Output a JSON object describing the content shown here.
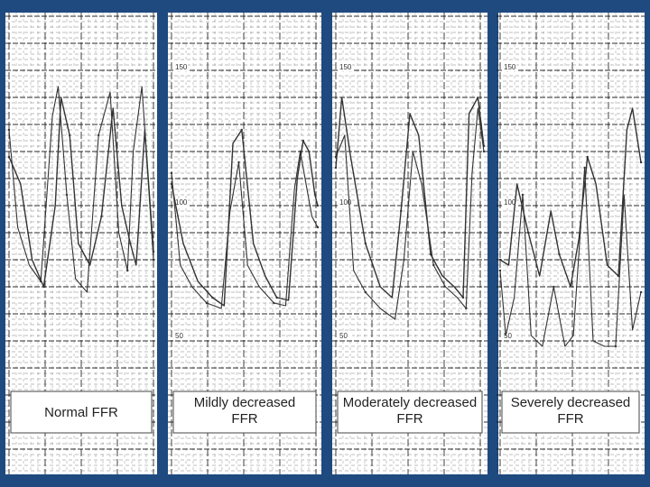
{
  "colors": {
    "background": "#1f4a80",
    "paper": "#ffffff",
    "grid": "#111111",
    "trace": "#333333"
  },
  "chart_data": [
    {
      "type": "line",
      "label": "Normal FFR",
      "tick_labels": [],
      "series": [
        {
          "x": [
            0,
            0.08,
            0.16,
            0.24,
            0.32,
            0.36,
            0.42,
            0.48,
            0.56,
            0.64,
            0.72,
            0.78,
            0.84,
            0.88,
            0.94,
            1
          ],
          "y": [
            110,
            100,
            72,
            62,
            92,
            132,
            118,
            78,
            70,
            88,
            128,
            92,
            78,
            70,
            120,
            75
          ]
        },
        {
          "x": [
            0,
            0.06,
            0.14,
            0.22,
            0.3,
            0.34,
            0.4,
            0.46,
            0.54,
            0.62,
            0.7,
            0.76,
            0.82,
            0.86,
            0.92,
            1
          ],
          "y": [
            120,
            84,
            70,
            64,
            125,
            136,
            96,
            65,
            60,
            118,
            134,
            82,
            68,
            112,
            136,
            72
          ]
        }
      ]
    },
    {
      "type": "line",
      "label": "Mildly decreased FFR",
      "tick_labels": [
        "150",
        "100",
        "50"
      ],
      "series": [
        {
          "x": [
            0,
            0.08,
            0.18,
            0.28,
            0.36,
            0.42,
            0.48,
            0.56,
            0.64,
            0.72,
            0.8,
            0.86,
            0.9,
            0.94,
            0.98,
            1
          ],
          "y": [
            100,
            78,
            64,
            58,
            55,
            115,
            120,
            78,
            66,
            58,
            57,
            102,
            116,
            112,
            96,
            92
          ]
        },
        {
          "x": [
            0,
            0.06,
            0.14,
            0.24,
            0.34,
            0.4,
            0.46,
            0.52,
            0.6,
            0.7,
            0.78,
            0.84,
            0.88,
            0.92,
            0.96,
            1
          ],
          "y": [
            104,
            70,
            62,
            56,
            54,
            90,
            108,
            70,
            62,
            56,
            55,
            98,
            112,
            100,
            88,
            84
          ]
        }
      ]
    },
    {
      "type": "line",
      "label": "Moderately decreased FFR",
      "tick_labels": [
        "150",
        "100",
        "50"
      ],
      "series": [
        {
          "x": [
            0,
            0.04,
            0.1,
            0.2,
            0.3,
            0.38,
            0.44,
            0.5,
            0.56,
            0.64,
            0.72,
            0.8,
            0.86,
            0.9,
            0.96,
            1
          ],
          "y": [
            106,
            132,
            110,
            78,
            62,
            58,
            90,
            126,
            118,
            74,
            66,
            62,
            58,
            126,
            132,
            114
          ]
        },
        {
          "x": [
            0,
            0.06,
            0.12,
            0.2,
            0.3,
            0.4,
            0.46,
            0.52,
            0.58,
            0.66,
            0.74,
            0.82,
            0.88,
            0.92,
            0.96,
            1
          ],
          "y": [
            110,
            118,
            68,
            60,
            54,
            50,
            72,
            112,
            100,
            70,
            62,
            58,
            54,
            104,
            128,
            112
          ]
        }
      ]
    },
    {
      "type": "line",
      "label": "Severely decreased FFR",
      "tick_labels": [
        "150",
        "100",
        "50"
      ],
      "series": [
        {
          "x": [
            0,
            0.06,
            0.12,
            0.2,
            0.28,
            0.36,
            0.42,
            0.5,
            0.56,
            0.62,
            0.68,
            0.76,
            0.84,
            0.9,
            0.94,
            1
          ],
          "y": [
            72,
            70,
            100,
            82,
            66,
            90,
            74,
            62,
            80,
            110,
            100,
            70,
            66,
            120,
            128,
            108
          ]
        },
        {
          "x": [
            0,
            0.04,
            0.1,
            0.16,
            0.22,
            0.3,
            0.38,
            0.46,
            0.52,
            0.6,
            0.66,
            0.74,
            0.82,
            0.88,
            0.94,
            1
          ],
          "y": [
            68,
            44,
            58,
            96,
            44,
            40,
            62,
            40,
            44,
            106,
            42,
            40,
            40,
            96,
            46,
            60
          ]
        }
      ]
    }
  ]
}
